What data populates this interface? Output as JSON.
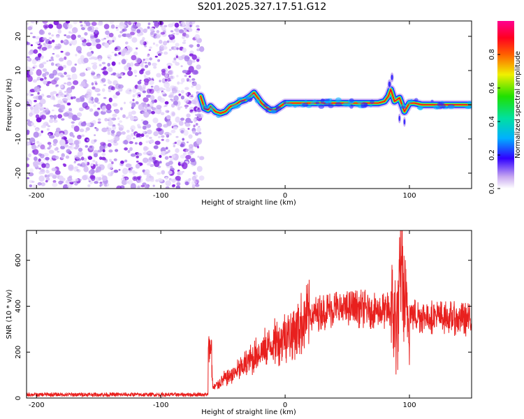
{
  "title": "S201.2025.327.17.51.G12",
  "colors": {
    "snr_line": "#e8201e",
    "noise": "#8a2be2",
    "trace_core": "#e81020"
  },
  "chart_data": [
    {
      "type": "heatmap",
      "id": "spectrogram",
      "xlabel": "Height of straight line (km)",
      "ylabel": "Frequency (Hz)",
      "xlim": [
        -208,
        150
      ],
      "ylim": [
        -24.5,
        24.5
      ],
      "xticks": [
        -200,
        -100,
        0,
        100
      ],
      "yticks": [
        -20,
        -10,
        0,
        10,
        20
      ],
      "xtick_labels": [
        "-200",
        "-100",
        "0",
        "100"
      ],
      "ytick_labels": [
        "-20",
        "-10",
        "0",
        "10",
        "20"
      ],
      "noise_region_x": [
        -208,
        -67
      ],
      "trace": {
        "x": [
          -68,
          -65,
          -62,
          -60,
          -56,
          -52,
          -48,
          -44,
          -40,
          -36,
          -32,
          -28,
          -25,
          -22,
          -19,
          -16,
          -12,
          -8,
          -4,
          0,
          20,
          40,
          60,
          75,
          80,
          83,
          85,
          88,
          92,
          96,
          100,
          104,
          110,
          120,
          130,
          140,
          150
        ],
        "y": [
          2.5,
          -1.0,
          -1.5,
          -0.5,
          -2.0,
          -2.5,
          -2.0,
          -0.5,
          0.0,
          1.0,
          1.5,
          2.5,
          3.5,
          2.0,
          0.5,
          -0.5,
          -1.5,
          -1.5,
          -0.5,
          0.5,
          0.5,
          0.5,
          0.5,
          0.5,
          1.0,
          2.5,
          4.5,
          1.0,
          2.0,
          -2.0,
          0.5,
          0.5,
          0.0,
          0.0,
          0.0,
          0.0,
          0.0
        ]
      }
    },
    {
      "type": "colorbar",
      "id": "colorbar",
      "label": "Normalized spectral amplitude",
      "range": [
        0.0,
        1.0
      ],
      "ticks": [
        0.0,
        0.2,
        0.4,
        0.6,
        0.8
      ],
      "tick_labels": [
        "0.0",
        "0.2",
        "0.4",
        "0.6",
        "0.8"
      ]
    },
    {
      "type": "line",
      "id": "snr",
      "xlabel": "Height of straight line (km)",
      "ylabel": "SNR (10 * v/v)",
      "xlim": [
        -208,
        150
      ],
      "ylim": [
        0,
        730
      ],
      "xticks": [
        -200,
        -100,
        0,
        100
      ],
      "yticks": [
        0,
        200,
        400,
        600
      ],
      "xtick_labels": [
        "-200",
        "-100",
        "0",
        "100"
      ],
      "ytick_labels": [
        "0",
        "200",
        "400",
        "600"
      ],
      "envelope": {
        "x": [
          -208,
          -70,
          -62,
          -60,
          -58,
          -50,
          -40,
          -20,
          0,
          10,
          20,
          40,
          60,
          80,
          86,
          90,
          93,
          95,
          98,
          105,
          120,
          140,
          150
        ],
        "y": [
          15,
          15,
          15,
          200,
          40,
          80,
          110,
          200,
          270,
          310,
          360,
          390,
          390,
          380,
          380,
          320,
          520,
          400,
          370,
          360,
          355,
          345,
          340
        ]
      },
      "peak_x": 94,
      "peak_y": 730
    }
  ]
}
